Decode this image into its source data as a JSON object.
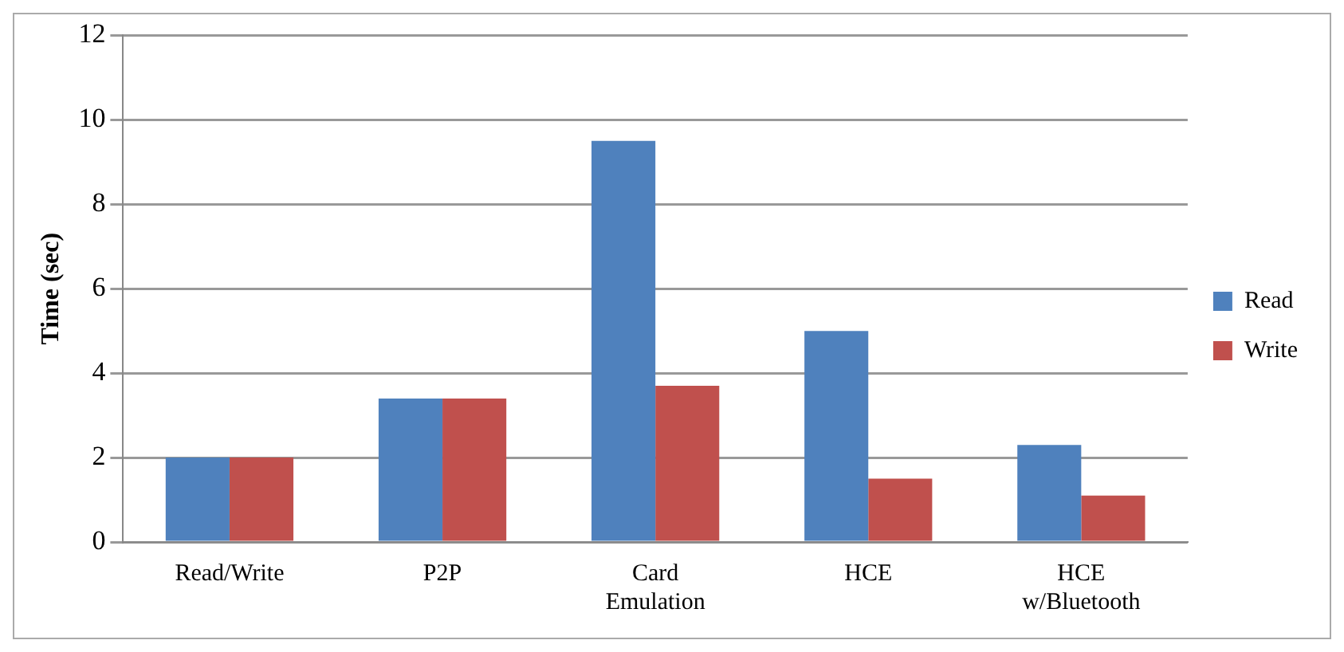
{
  "chart_data": {
    "type": "bar",
    "ylabel": "Time (sec)",
    "categories": [
      "Read/Write",
      "P2P",
      "Card Emulation",
      "HCE",
      "HCE w/Bluetooth"
    ],
    "series": [
      {
        "name": "Read",
        "color": "#4f81bd",
        "values": [
          2.0,
          3.4,
          9.5,
          5.0,
          2.3
        ]
      },
      {
        "name": "Write",
        "color": "#c0504d",
        "values": [
          2.0,
          3.4,
          3.7,
          1.5,
          1.1
        ]
      }
    ],
    "ylim": [
      0,
      12
    ],
    "yticks": [
      0,
      2,
      4,
      6,
      8,
      10,
      12
    ],
    "grid": "y",
    "legend": "right"
  }
}
